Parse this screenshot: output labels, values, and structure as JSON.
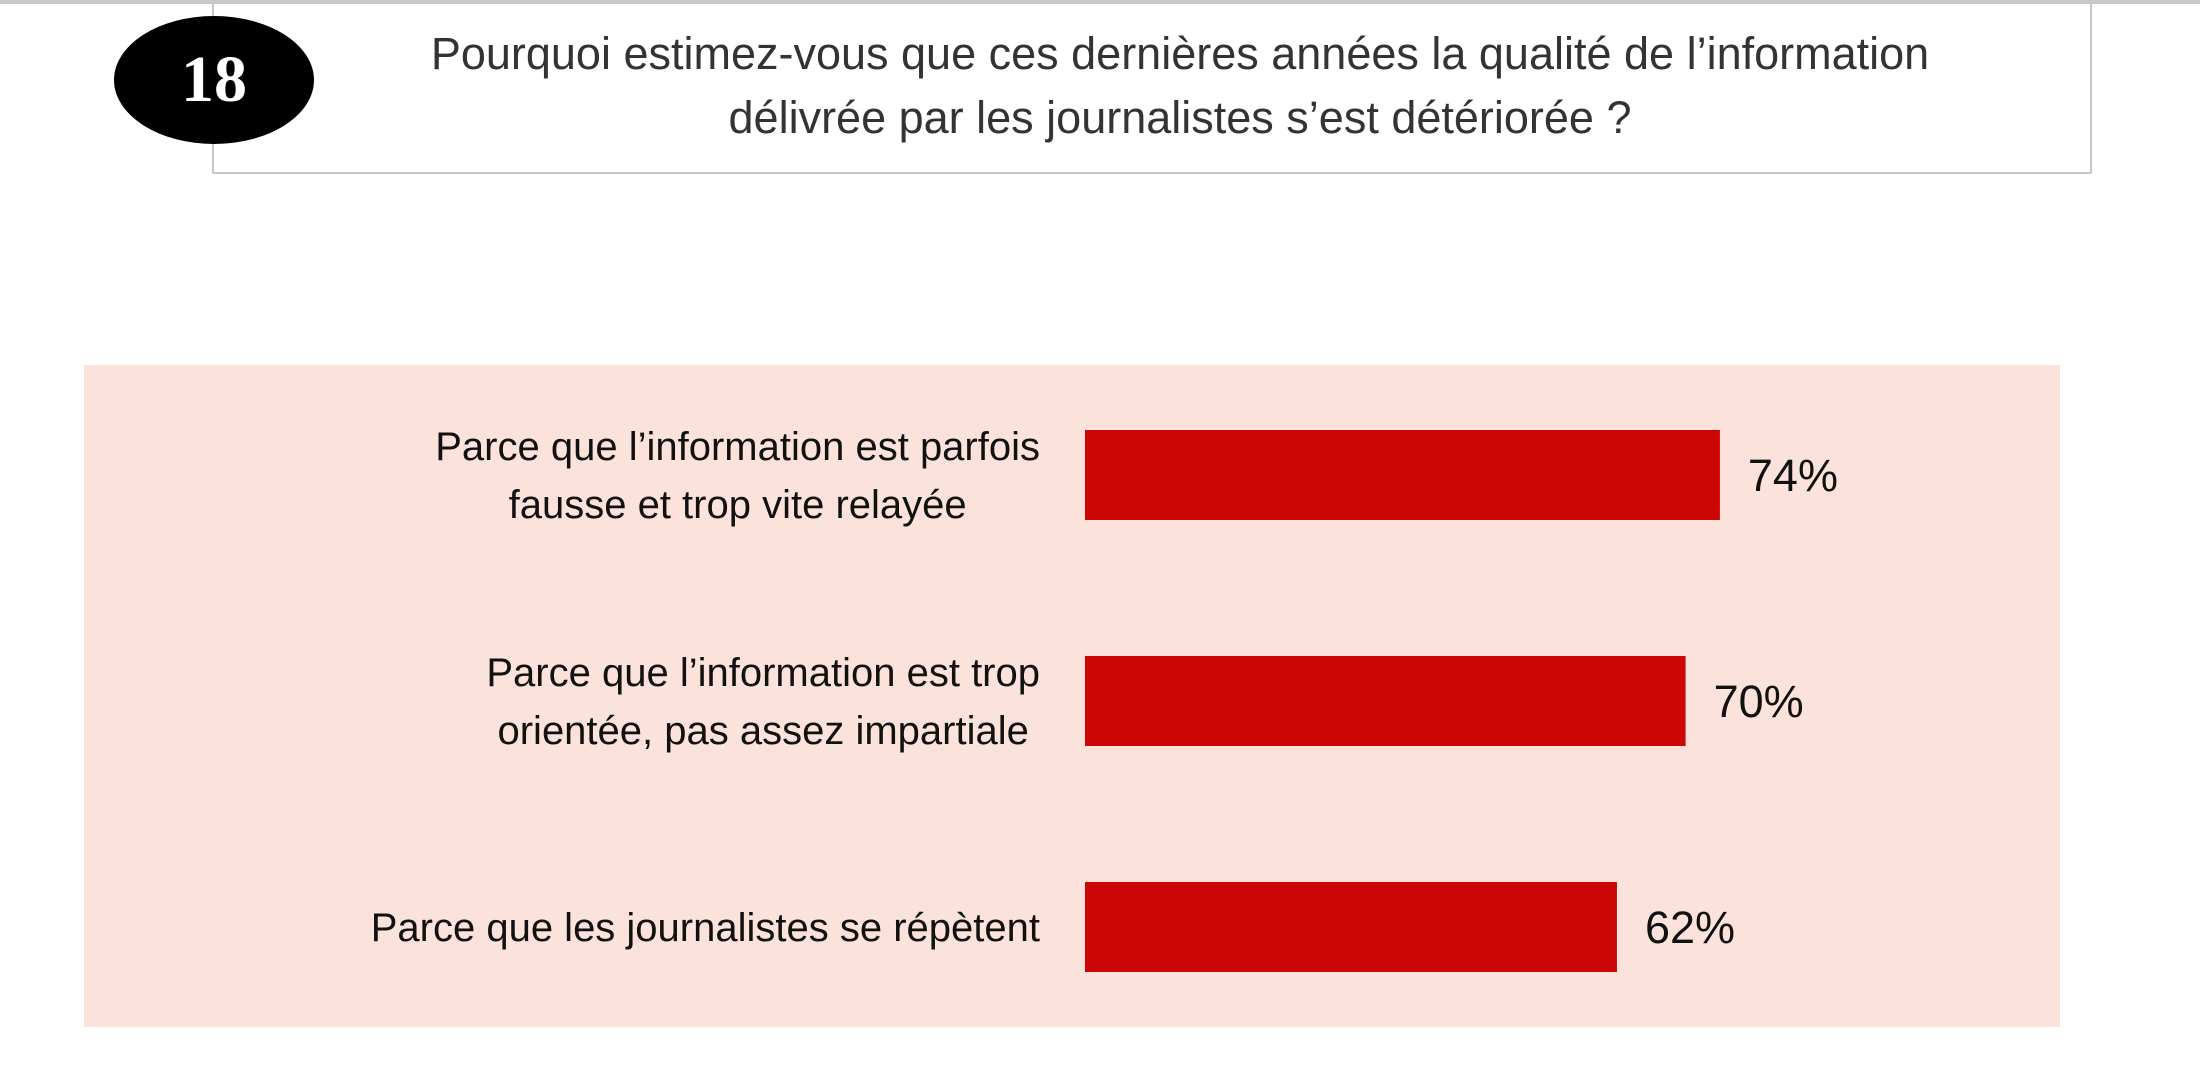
{
  "question": {
    "number": "18",
    "line1": "Pourquoi estimez-vous que ces dernières années la qualité de l’information",
    "line2": "délivrée par les journalistes s’est détériorée ?"
  },
  "colors": {
    "panel_background": "#fbe2da",
    "bar": "#cc0607",
    "badge": "#000000"
  },
  "chart_data": {
    "type": "bar",
    "orientation": "horizontal",
    "categories": [
      [
        "Parce que l’information est parfois",
        "fausse et trop vite relayée"
      ],
      [
        "Parce que l’information est trop",
        "orientée, pas assez impartiale"
      ],
      [
        "Parce que les journalistes se répètent"
      ]
    ],
    "values": [
      74,
      70,
      62
    ],
    "value_labels": [
      "74%",
      "70%",
      "62%"
    ],
    "unit": "%",
    "xlim": [
      0,
      100
    ],
    "grid": false,
    "legend": "none"
  }
}
